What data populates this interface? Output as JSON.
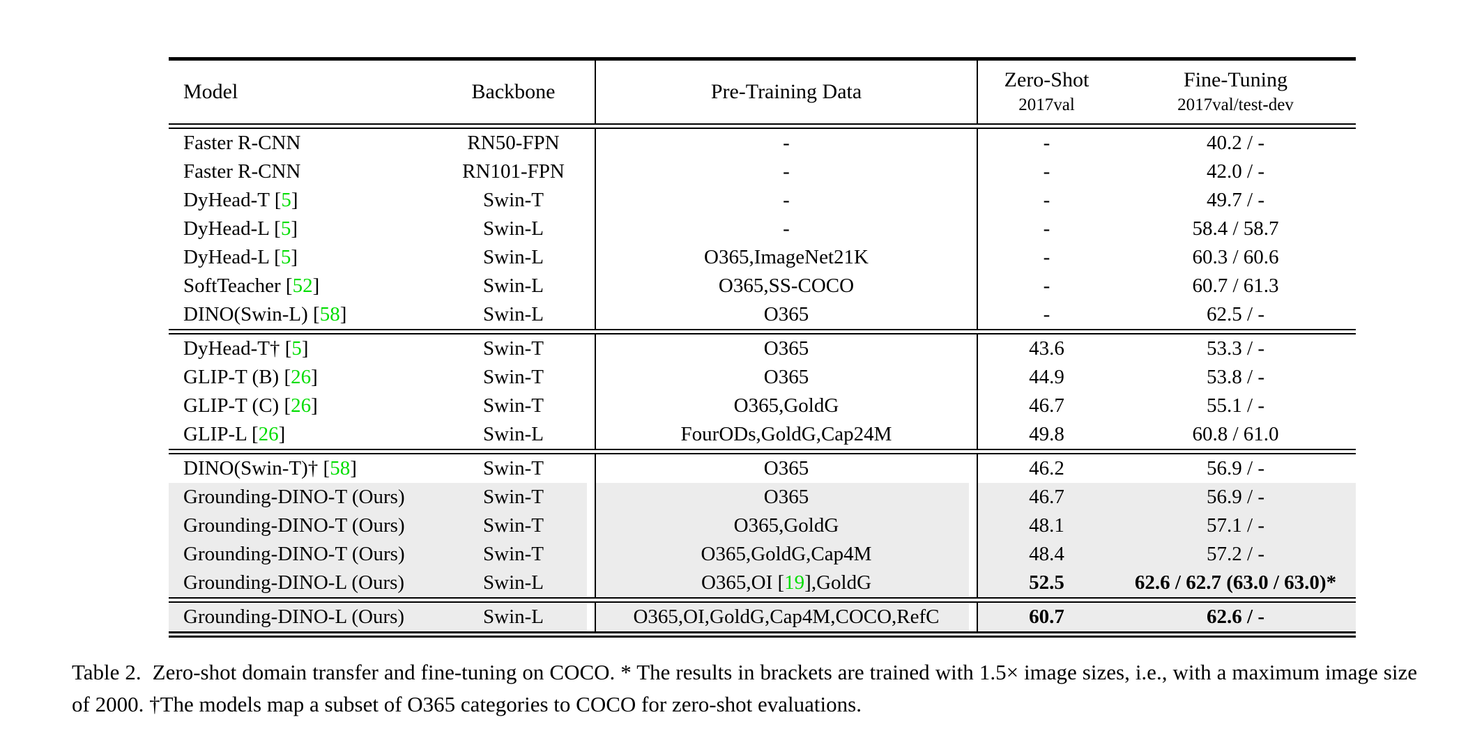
{
  "table": {
    "columns": [
      {
        "label": "Model",
        "sub": ""
      },
      {
        "label": "Backbone",
        "sub": ""
      },
      {
        "label": "Pre-Training Data",
        "sub": ""
      },
      {
        "label": "Zero-Shot",
        "sub": "2017val"
      },
      {
        "label": "Fine-Tuning",
        "sub": "2017val/test-dev"
      }
    ],
    "sections": [
      {
        "rows": [
          {
            "gray": false,
            "bold": false,
            "cells": [
              "Faster R-CNN",
              "RN50-FPN",
              "-",
              "-",
              "40.2 / -"
            ]
          },
          {
            "gray": false,
            "bold": false,
            "cells": [
              "Faster R-CNN",
              "RN101-FPN",
              "-",
              "-",
              "42.0 / -"
            ]
          },
          {
            "gray": false,
            "bold": false,
            "cells": [
              "DyHead-T [§5§]",
              "Swin-T",
              "-",
              "-",
              "49.7 / -"
            ]
          },
          {
            "gray": false,
            "bold": false,
            "cells": [
              "DyHead-L [§5§]",
              "Swin-L",
              "-",
              "-",
              "58.4 / 58.7"
            ]
          },
          {
            "gray": false,
            "bold": false,
            "cells": [
              "DyHead-L [§5§]",
              "Swin-L",
              "O365,ImageNet21K",
              "-",
              "60.3 / 60.6"
            ]
          },
          {
            "gray": false,
            "bold": false,
            "cells": [
              "SoftTeacher [§52§]",
              "Swin-L",
              "O365,SS-COCO",
              "-",
              "60.7 / 61.3"
            ]
          },
          {
            "gray": false,
            "bold": false,
            "cells": [
              "DINO(Swin-L) [§58§]",
              "Swin-L",
              "O365",
              "-",
              "62.5 / -"
            ]
          }
        ]
      },
      {
        "rows": [
          {
            "gray": false,
            "bold": false,
            "cells": [
              "DyHead-T† [§5§]",
              "Swin-T",
              "O365",
              "43.6",
              "53.3 / -"
            ]
          },
          {
            "gray": false,
            "bold": false,
            "cells": [
              "GLIP-T (B) [§26§]",
              "Swin-T",
              "O365",
              "44.9",
              "53.8 / -"
            ]
          },
          {
            "gray": false,
            "bold": false,
            "cells": [
              "GLIP-T (C) [§26§]",
              "Swin-T",
              "O365,GoldG",
              "46.7",
              "55.1 / -"
            ]
          },
          {
            "gray": false,
            "bold": false,
            "cells": [
              "GLIP-L [§26§]",
              "Swin-L",
              "FourODs,GoldG,Cap24M",
              "49.8",
              "60.8 / 61.0"
            ]
          }
        ]
      },
      {
        "rows": [
          {
            "gray": false,
            "bold": false,
            "cells": [
              "DINO(Swin-T)† [§58§]",
              "Swin-T",
              "O365",
              "46.2",
              "56.9 / -"
            ]
          },
          {
            "gray": true,
            "bold": false,
            "cells": [
              "Grounding-DINO-T (Ours)",
              "Swin-T",
              "O365",
              "46.7",
              "56.9 / -"
            ]
          },
          {
            "gray": true,
            "bold": false,
            "cells": [
              "Grounding-DINO-T (Ours)",
              "Swin-T",
              "O365,GoldG",
              "48.1",
              "57.1 / -"
            ]
          },
          {
            "gray": true,
            "bold": false,
            "cells": [
              "Grounding-DINO-T (Ours)",
              "Swin-T",
              "O365,GoldG,Cap4M",
              "48.4",
              "57.2 / -"
            ]
          },
          {
            "gray": true,
            "bold": true,
            "cells": [
              "Grounding-DINO-L (Ours)",
              "Swin-L",
              "O365,OI [§19§],GoldG",
              "52.5",
              "62.6 / 62.7 (63.0 / 63.0)*"
            ]
          }
        ]
      },
      {
        "rows": [
          {
            "gray": true,
            "bold": true,
            "cells": [
              "Grounding-DINO-L (Ours)",
              "Swin-L",
              "O365,OI,GoldG,Cap4M,COCO,RefC",
              "60.7",
              "62.6 / -"
            ]
          }
        ]
      }
    ]
  },
  "caption": {
    "label": "Table 2.",
    "text": "Zero-shot domain transfer and fine-tuning on COCO. * The results in brackets are trained with 1.5× image sizes, i.e., with a maximum image size of 2000. †The models map a subset of O365 categories to COCO for zero-shot evaluations."
  },
  "colors": {
    "citation_green": "#00dd00",
    "row_highlight": "#ececec",
    "text": "#000000"
  }
}
